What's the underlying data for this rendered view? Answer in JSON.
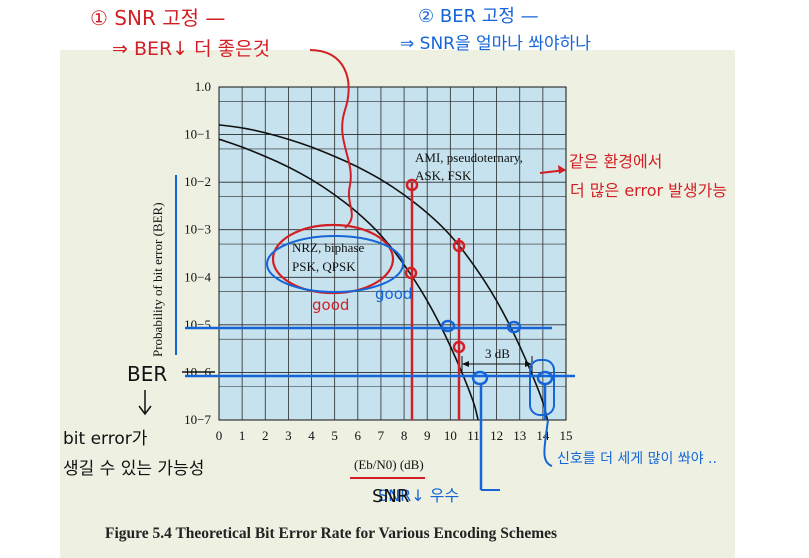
{
  "figure": {
    "caption": "Figure 5.4  Theoretical Bit Error Rate for Various Encoding Schemes"
  },
  "chart_data": {
    "type": "line",
    "title": "",
    "xlabel": "(Eb/N0) (dB)",
    "ylabel": "Probability of bit error (BER)",
    "x_ticks": [
      "0",
      "1",
      "2",
      "3",
      "4",
      "5",
      "6",
      "7",
      "8",
      "9",
      "10",
      "11",
      "12",
      "13",
      "14",
      "15"
    ],
    "y_ticks": [
      "1.0",
      "10−1",
      "10−2",
      "10−3",
      "10−4",
      "10−5",
      "10−6",
      "10−7"
    ],
    "xlim": [
      0,
      15
    ],
    "ylim": [
      1e-07,
      1
    ],
    "yscale": "log",
    "grid": true,
    "series": [
      {
        "name": "NRZ, biphase\nPSK, QPSK",
        "x": [
          0,
          1,
          2,
          3,
          4,
          5,
          6,
          7,
          8,
          9,
          10,
          11,
          11.2
        ],
        "y": [
          0.08,
          0.055,
          0.035,
          0.021,
          0.0115,
          0.0055,
          0.0023,
          0.0008,
          0.00019,
          3.4e-05,
          3.8e-06,
          2.6e-07,
          1e-07
        ]
      },
      {
        "name": "AMI, pseudoternary,\nASK, FSK",
        "x": [
          0,
          1,
          2,
          3,
          4,
          5,
          6,
          7,
          8,
          9,
          10,
          11,
          12,
          13,
          14,
          14.2
        ],
        "y": [
          0.16,
          0.14,
          0.11,
          0.08,
          0.055,
          0.035,
          0.021,
          0.0115,
          0.0055,
          0.0023,
          0.0008,
          0.00019,
          3.4e-05,
          3.8e-06,
          2.6e-07,
          1e-07
        ]
      }
    ],
    "annotations": {
      "series_label_top": [
        "AMI, pseudoternary,",
        "ASK, FSK"
      ],
      "series_label_bottom": [
        "NRZ, biphase",
        "PSK, QPSK"
      ],
      "gap_label": "3 dB"
    }
  },
  "handwriting": {
    "note1_line1": "① SNR 고정 —",
    "note1_line2": "⇒ BER↓ 더 좋은것",
    "note2_line1": "② BER 고정 —",
    "note2_line2": "⇒ SNR을 얼마나 쏴야하나",
    "right_note_line1": "같은 환경에서",
    "right_note_line2": "더 많은 error 발생가능",
    "good_red": "good",
    "good_blue": "good",
    "ber_label": "BER",
    "bit_error_line1": "bit error가",
    "bit_error_line2": "생길 수 있는 가능성",
    "snr_label": "SNR",
    "snr_down": "SNR↓ 우수",
    "right_bottom_note": "신호를 더 세게 많이 쏴야 ..",
    "mark_ten": "1"
  }
}
